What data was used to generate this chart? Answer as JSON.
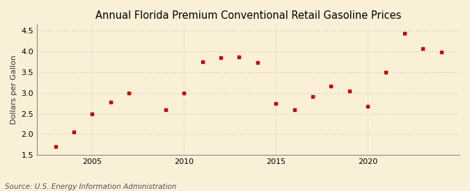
{
  "title": "Annual Florida Premium Conventional Retail Gasoline Prices",
  "ylabel": "Dollars per Gallon",
  "source": "Source: U.S. Energy Information Administration",
  "background_color": "#faf0d7",
  "plot_bg_color": "#faf0d7",
  "marker_color": "#cc0000",
  "years": [
    2003,
    2004,
    2005,
    2006,
    2007,
    2009,
    2010,
    2011,
    2012,
    2013,
    2014,
    2015,
    2016,
    2017,
    2018,
    2019,
    2020,
    2021,
    2022,
    2023,
    2024
  ],
  "values": [
    1.7,
    2.05,
    2.5,
    2.78,
    3.0,
    2.6,
    3.0,
    3.75,
    3.85,
    3.87,
    3.73,
    2.75,
    2.6,
    2.91,
    3.17,
    3.05,
    2.67,
    3.5,
    4.43,
    4.07,
    3.98
  ],
  "xlim": [
    2002,
    2025
  ],
  "ylim": [
    1.5,
    4.65
  ],
  "yticks": [
    1.5,
    2.0,
    2.5,
    3.0,
    3.5,
    4.0,
    4.5
  ],
  "xticks": [
    2005,
    2010,
    2015,
    2020
  ],
  "grid_color": "#b0b0b0",
  "title_fontsize": 10.5,
  "label_fontsize": 8,
  "tick_fontsize": 8,
  "source_fontsize": 7.5
}
